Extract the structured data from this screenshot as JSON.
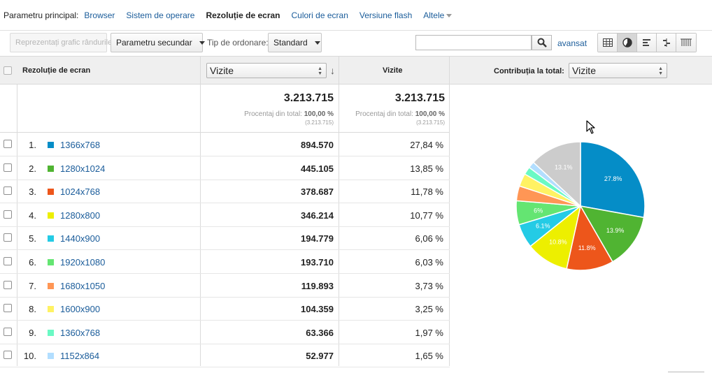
{
  "primary": {
    "label": "Parametru principal:",
    "dims": [
      "Browser",
      "Sistem de operare",
      "Rezoluție de ecran",
      "Culori de ecran",
      "Versiune flash",
      "Altele"
    ],
    "active_index": 2
  },
  "toolbar": {
    "plot_rows": "Reprezentați grafic rândurile",
    "secondary": "Parametru secundar",
    "sort_label": "Tip de ordonare:",
    "sort_value": "Standard",
    "search_value": "",
    "advanced": "avansat"
  },
  "header": {
    "dim_col": "Rezoluție de ecran",
    "metric_select": "Vizite",
    "visits_col": "Vizite",
    "contribution_label": "Contribuția la total:",
    "contribution_select": "Vizite"
  },
  "totals": {
    "visits": "3.213.715",
    "visits_pct_label": "Procentaj din total:",
    "visits_pct_value": "100,00 %",
    "visits_sub": "(3.213.715)",
    "pct_total": "3.213.715",
    "pct_pct_label": "Procentaj din total:",
    "pct_pct_value": "100,00 %",
    "pct_sub": "(3.213.715)"
  },
  "rows": [
    {
      "num": "1.",
      "name": "1366x768",
      "visits": "894.570",
      "pct": "27,84 %",
      "color": "#058dc7"
    },
    {
      "num": "2.",
      "name": "1280x1024",
      "visits": "445.105",
      "pct": "13,85 %",
      "color": "#50b432"
    },
    {
      "num": "3.",
      "name": "1024x768",
      "visits": "378.687",
      "pct": "11,78 %",
      "color": "#ed561b"
    },
    {
      "num": "4.",
      "name": "1280x800",
      "visits": "346.214",
      "pct": "10,77 %",
      "color": "#edef00"
    },
    {
      "num": "5.",
      "name": "1440x900",
      "visits": "194.779",
      "pct": "6,06 %",
      "color": "#24cbe5"
    },
    {
      "num": "6.",
      "name": "1920x1080",
      "visits": "193.710",
      "pct": "6,03 %",
      "color": "#64e572"
    },
    {
      "num": "7.",
      "name": "1680x1050",
      "visits": "119.893",
      "pct": "3,73 %",
      "color": "#ff9655"
    },
    {
      "num": "8.",
      "name": "1600x900",
      "visits": "104.359",
      "pct": "3,25 %",
      "color": "#fff263"
    },
    {
      "num": "9.",
      "name": "1360x768",
      "visits": "63.366",
      "pct": "1,97 %",
      "color": "#6af9c4"
    },
    {
      "num": "10.",
      "name": "1152x864",
      "visits": "52.977",
      "pct": "1,65 %",
      "color": "#b2deff"
    }
  ],
  "chart_data": {
    "type": "pie",
    "slices": [
      {
        "label": "27.8%",
        "value": 27.84,
        "color": "#058dc7"
      },
      {
        "label": "13.9%",
        "value": 13.85,
        "color": "#50b432"
      },
      {
        "label": "11.8%",
        "value": 11.78,
        "color": "#ed561b"
      },
      {
        "label": "10.8%",
        "value": 10.77,
        "color": "#edef00"
      },
      {
        "label": "6.1%",
        "value": 6.06,
        "color": "#24cbe5"
      },
      {
        "label": "6%",
        "value": 6.03,
        "color": "#64e572"
      },
      {
        "label": "",
        "value": 3.73,
        "color": "#ff9655"
      },
      {
        "label": "",
        "value": 3.25,
        "color": "#fff263"
      },
      {
        "label": "",
        "value": 1.97,
        "color": "#6af9c4"
      },
      {
        "label": "",
        "value": 1.65,
        "color": "#b2deff"
      },
      {
        "label": "13.1%",
        "value": 13.07,
        "color": "#cccccc"
      }
    ]
  }
}
